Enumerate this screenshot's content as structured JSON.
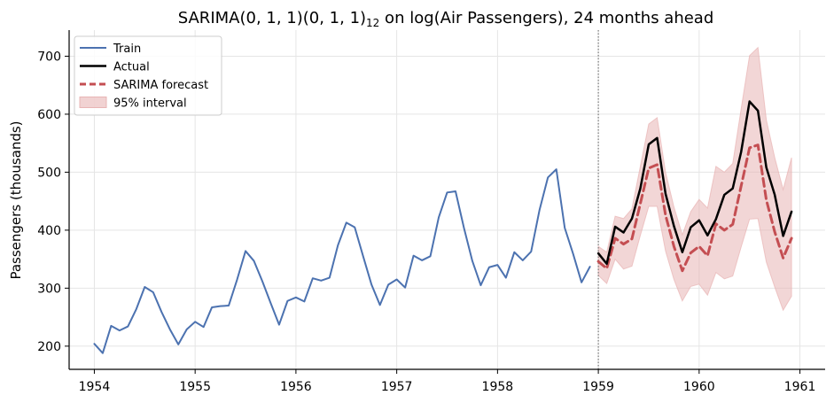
{
  "chart_data": {
    "type": "line",
    "title_main": "SARIMA(0, 1, 1)(0, 1, 1)",
    "title_sub": "12",
    "title_tail": " on log(Air Passengers), 24 months ahead",
    "ylabel": "Passengers (thousands)",
    "xlabel": "",
    "xlim": [
      1953.75,
      1961.25
    ],
    "ylim": [
      160,
      745
    ],
    "x_ticks": [
      1954,
      1955,
      1956,
      1957,
      1958,
      1959,
      1960,
      1961
    ],
    "y_ticks": [
      200,
      300,
      400,
      500,
      600,
      700
    ],
    "grid": true,
    "forecast_start_line": 1959,
    "legend_position": "top-left",
    "legend": [
      {
        "label": "Train",
        "style": "line",
        "color": "#4c72b0"
      },
      {
        "label": "Actual",
        "style": "line",
        "color": "#000000"
      },
      {
        "label": "SARIMA forecast",
        "style": "dashed",
        "color": "#c44e52"
      },
      {
        "label": "95% interval",
        "style": "band",
        "color": "#c44e52"
      }
    ],
    "train": {
      "start": 1954,
      "step_months": 1,
      "values": [
        204,
        188,
        235,
        227,
        234,
        264,
        302,
        293,
        259,
        229,
        203,
        229,
        242,
        233,
        267,
        269,
        270,
        315,
        364,
        347,
        312,
        274,
        237,
        278,
        284,
        277,
        317,
        313,
        318,
        374,
        413,
        405,
        355,
        306,
        271,
        306,
        315,
        301,
        356,
        348,
        355,
        422,
        465,
        467,
        404,
        347,
        305,
        336,
        340,
        318,
        362,
        348,
        363,
        435,
        491,
        505,
        404,
        359,
        310,
        337
      ]
    },
    "actual": {
      "start": 1959,
      "step_months": 1,
      "values": [
        360,
        342,
        406,
        396,
        420,
        472,
        548,
        559,
        463,
        407,
        362,
        405,
        417,
        391,
        419,
        461,
        472,
        535,
        622,
        606,
        508,
        461,
        390,
        432
      ]
    },
    "forecast": {
      "start": 1959,
      "step_months": 1,
      "values": [
        346,
        334,
        386,
        376,
        385,
        446,
        507,
        513,
        426,
        372,
        330,
        361,
        372,
        356,
        411,
        400,
        410,
        476,
        542,
        547,
        452,
        397,
        352,
        386
      ],
      "lower": [
        322,
        308,
        350,
        333,
        338,
        391,
        441,
        441,
        364,
        315,
        278,
        303,
        307,
        288,
        327,
        316,
        321,
        371,
        419,
        420,
        345,
        302,
        262,
        286
      ],
      "upper": [
        372,
        362,
        424,
        420,
        437,
        510,
        583,
        594,
        500,
        440,
        392,
        432,
        453,
        438,
        510,
        500,
        515,
        609,
        701,
        715,
        590,
        525,
        470,
        525
      ]
    },
    "colors": {
      "train": "#4c72b0",
      "actual": "#000000",
      "forecast": "#c44e52",
      "band": "#e8b4b4",
      "grid": "#e5e5e5"
    }
  }
}
